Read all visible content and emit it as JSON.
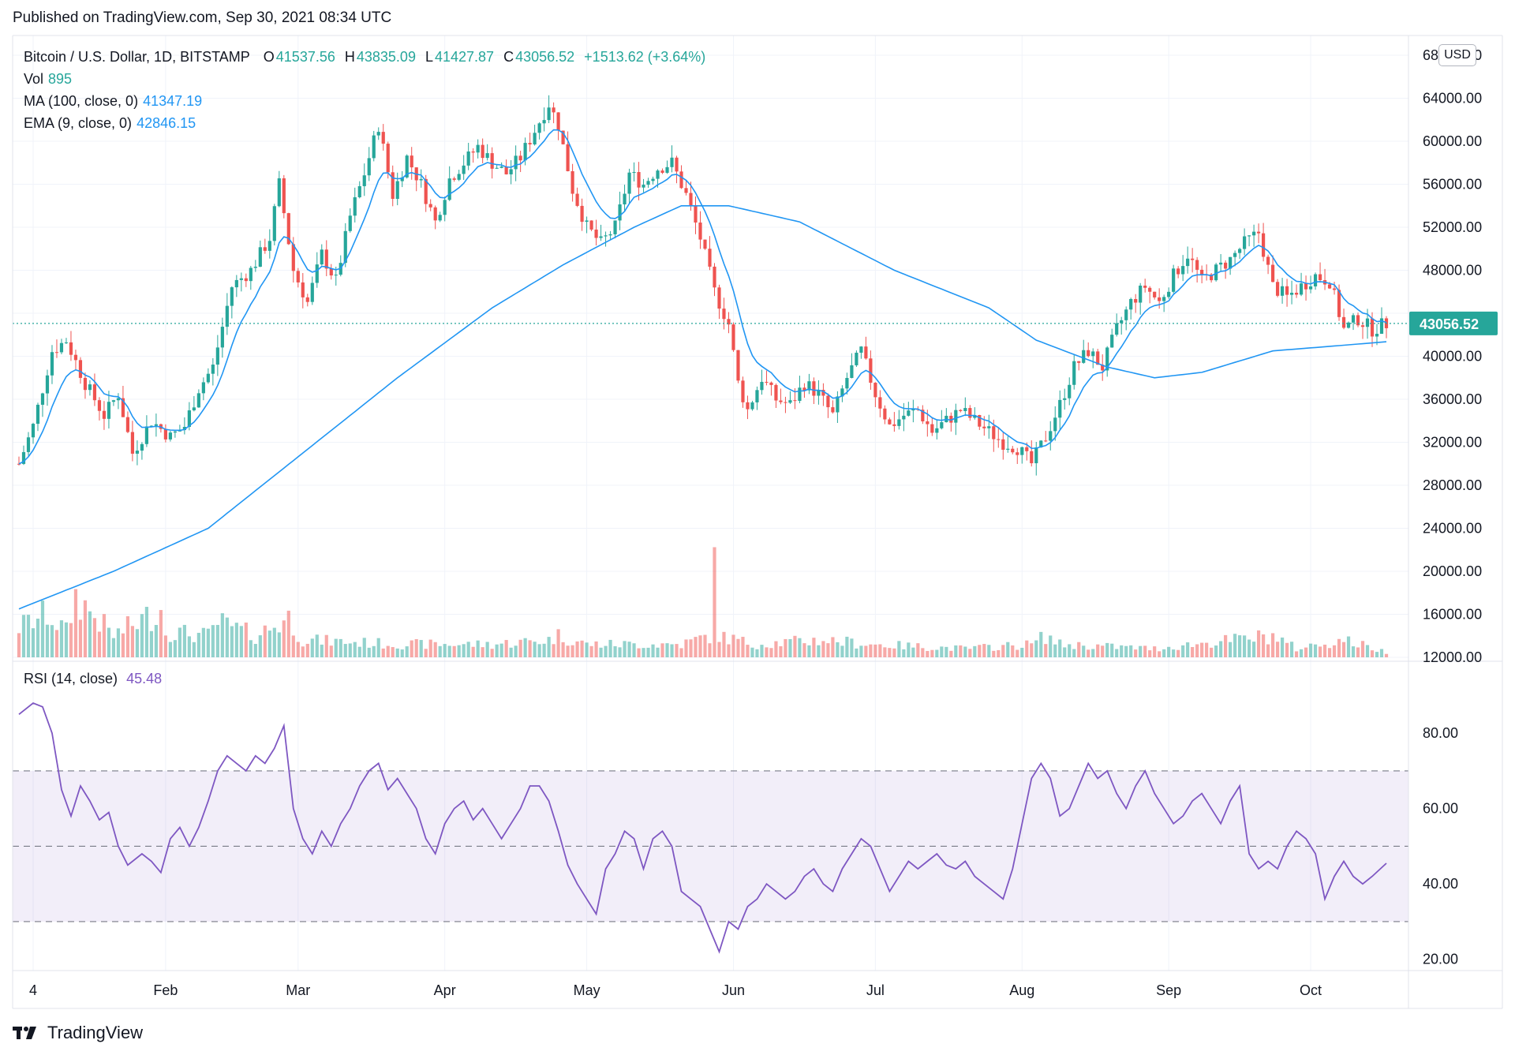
{
  "header": {
    "published": "Published on TradingView.com, Sep 30, 2021 08:34 UTC"
  },
  "legend": {
    "symbol": "Bitcoin / U.S. Dollar, 1D, BITSTAMP",
    "open_label": "O",
    "open": "41537.56",
    "high_label": "H",
    "high": "43835.09",
    "low_label": "L",
    "low": "41427.87",
    "close_label": "C",
    "close": "43056.52",
    "change": "+1513.62 (+3.64%)",
    "vol_label": "Vol",
    "vol": "895",
    "ma_label": "MA (100, close, 0)",
    "ma": "41347.19",
    "ema_label": "EMA (9, close, 0)",
    "ema": "42846.15",
    "rsi_label": "RSI (14, close)",
    "rsi": "45.48"
  },
  "currency": "USD",
  "footer": {
    "logo_text": "TradingView"
  },
  "colors": {
    "up": "#26a69a",
    "down": "#ef5350",
    "ma": "#2196f3",
    "rsi": "#7e57c2",
    "price_tag": "#26a69a"
  },
  "chart_data": [
    {
      "type": "candlestick",
      "title": "Bitcoin / U.S. Dollar, 1D, BITSTAMP",
      "ylabel": "USD",
      "ylim": [
        12000,
        68000
      ],
      "y_ticks": [
        "68000.00",
        "64000.00",
        "60000.00",
        "56000.00",
        "52000.00",
        "48000.00",
        "44000.00",
        "40000.00",
        "36000.00",
        "32000.00",
        "28000.00",
        "24000.00",
        "20000.00",
        "16000.00",
        "12000.00"
      ],
      "x_ticks": [
        "4",
        "Feb",
        "Mar",
        "Apr",
        "May",
        "Jun",
        "Jul",
        "Aug",
        "Sep",
        "Oct"
      ],
      "current_price": "43056.52",
      "close_path": [
        [
          0,
          30000
        ],
        [
          3,
          33500
        ],
        [
          7,
          40500
        ],
        [
          10,
          41500
        ],
        [
          14,
          37500
        ],
        [
          18,
          34500
        ],
        [
          21,
          36500
        ],
        [
          24,
          31000
        ],
        [
          28,
          34000
        ],
        [
          32,
          32500
        ],
        [
          35,
          33500
        ],
        [
          38,
          37000
        ],
        [
          41,
          39000
        ],
        [
          45,
          46500
        ],
        [
          49,
          48000
        ],
        [
          53,
          51000
        ],
        [
          55,
          56000
        ],
        [
          58,
          48000
        ],
        [
          61,
          45000
        ],
        [
          64,
          49500
        ],
        [
          67,
          47000
        ],
        [
          70,
          53000
        ],
        [
          73,
          57000
        ],
        [
          76,
          61500
        ],
        [
          79,
          55000
        ],
        [
          82,
          58500
        ],
        [
          85,
          56000
        ],
        [
          88,
          52500
        ],
        [
          91,
          56500
        ],
        [
          94,
          58000
        ],
        [
          97,
          59500
        ],
        [
          100,
          58000
        ],
        [
          103,
          57000
        ],
        [
          106,
          58500
        ],
        [
          109,
          61000
        ],
        [
          112,
          63500
        ],
        [
          114,
          61500
        ],
        [
          117,
          55500
        ],
        [
          120,
          52000
        ],
        [
          123,
          50500
        ],
        [
          126,
          52000
        ],
        [
          129,
          57000
        ],
        [
          132,
          56000
        ],
        [
          135,
          57500
        ],
        [
          138,
          58000
        ],
        [
          141,
          55000
        ],
        [
          144,
          51000
        ],
        [
          147,
          46000
        ],
        [
          150,
          43000
        ],
        [
          152,
          37500
        ],
        [
          154,
          35000
        ],
        [
          157,
          38000
        ],
        [
          160,
          36000
        ],
        [
          163,
          35500
        ],
        [
          166,
          37500
        ],
        [
          169,
          36500
        ],
        [
          172,
          34500
        ],
        [
          175,
          38000
        ],
        [
          178,
          40500
        ],
        [
          181,
          36500
        ],
        [
          184,
          33500
        ],
        [
          187,
          34500
        ],
        [
          190,
          35000
        ],
        [
          193,
          33000
        ],
        [
          196,
          34000
        ],
        [
          199,
          35000
        ],
        [
          202,
          34000
        ],
        [
          205,
          33000
        ],
        [
          208,
          32000
        ],
        [
          211,
          31500
        ],
        [
          214,
          30000
        ],
        [
          217,
          32500
        ],
        [
          220,
          35500
        ],
        [
          223,
          39000
        ],
        [
          226,
          40500
        ],
        [
          229,
          39000
        ],
        [
          232,
          42500
        ],
        [
          235,
          45000
        ],
        [
          238,
          46500
        ],
        [
          241,
          45000
        ],
        [
          244,
          47500
        ],
        [
          247,
          49500
        ],
        [
          250,
          47000
        ],
        [
          253,
          48000
        ],
        [
          256,
          49000
        ],
        [
          259,
          50500
        ],
        [
          262,
          51500
        ],
        [
          265,
          46500
        ],
        [
          268,
          45500
        ],
        [
          271,
          46500
        ],
        [
          274,
          47500
        ],
        [
          277,
          47000
        ],
        [
          280,
          42500
        ],
        [
          283,
          43500
        ],
        [
          286,
          42500
        ],
        [
          289,
          43056
        ]
      ],
      "ma100_path": [
        [
          0,
          16500
        ],
        [
          20,
          20000
        ],
        [
          40,
          24000
        ],
        [
          60,
          31000
        ],
        [
          80,
          38000
        ],
        [
          100,
          44500
        ],
        [
          115,
          48500
        ],
        [
          130,
          52000
        ],
        [
          140,
          54000
        ],
        [
          150,
          54000
        ],
        [
          165,
          52500
        ],
        [
          185,
          48000
        ],
        [
          205,
          44500
        ],
        [
          215,
          41500
        ],
        [
          230,
          39000
        ],
        [
          240,
          38000
        ],
        [
          250,
          38500
        ],
        [
          265,
          40500
        ],
        [
          289,
          41347
        ]
      ],
      "volume_ylim": [
        0,
        20000
      ],
      "volume_path": [
        [
          0,
          3500
        ],
        [
          6,
          5000
        ],
        [
          10,
          3000
        ],
        [
          12,
          7000
        ],
        [
          20,
          2500
        ],
        [
          30,
          5500
        ],
        [
          31,
          3000
        ],
        [
          40,
          2500
        ],
        [
          42,
          4000
        ],
        [
          50,
          2500
        ],
        [
          57,
          4500
        ],
        [
          60,
          2000
        ],
        [
          80,
          1500
        ],
        [
          100,
          1500
        ],
        [
          112,
          2000
        ],
        [
          114,
          2500
        ],
        [
          120,
          1500
        ],
        [
          140,
          1500
        ],
        [
          146,
          2500
        ],
        [
          147,
          9500
        ],
        [
          148,
          2500
        ],
        [
          155,
          1500
        ],
        [
          170,
          2000
        ],
        [
          180,
          1500
        ],
        [
          200,
          1000
        ],
        [
          214,
          1500
        ],
        [
          217,
          2500
        ],
        [
          220,
          1500
        ],
        [
          240,
          1000
        ],
        [
          265,
          2500
        ],
        [
          270,
          1000
        ],
        [
          280,
          2000
        ],
        [
          289,
          600
        ]
      ]
    },
    {
      "type": "line",
      "title": "RSI (14, close)",
      "ylim": [
        17,
        97
      ],
      "y_ticks": [
        "80.00",
        "60.00",
        "40.00",
        "20.00"
      ],
      "bands": [
        30,
        50,
        70
      ],
      "last": 45.48,
      "path": [
        [
          0,
          85
        ],
        [
          3,
          88
        ],
        [
          5,
          87
        ],
        [
          7,
          80
        ],
        [
          9,
          65
        ],
        [
          11,
          58
        ],
        [
          13,
          66
        ],
        [
          15,
          62
        ],
        [
          17,
          57
        ],
        [
          19,
          59
        ],
        [
          21,
          50
        ],
        [
          23,
          45
        ],
        [
          26,
          48
        ],
        [
          28,
          46
        ],
        [
          30,
          43
        ],
        [
          32,
          52
        ],
        [
          34,
          55
        ],
        [
          36,
          50
        ],
        [
          38,
          55
        ],
        [
          40,
          62
        ],
        [
          42,
          70
        ],
        [
          44,
          74
        ],
        [
          46,
          72
        ],
        [
          48,
          70
        ],
        [
          50,
          74
        ],
        [
          52,
          72
        ],
        [
          54,
          76
        ],
        [
          56,
          82
        ],
        [
          58,
          60
        ],
        [
          60,
          52
        ],
        [
          62,
          48
        ],
        [
          64,
          54
        ],
        [
          66,
          50
        ],
        [
          68,
          56
        ],
        [
          70,
          60
        ],
        [
          72,
          66
        ],
        [
          74,
          70
        ],
        [
          76,
          72
        ],
        [
          78,
          65
        ],
        [
          80,
          68
        ],
        [
          82,
          64
        ],
        [
          84,
          60
        ],
        [
          86,
          52
        ],
        [
          88,
          48
        ],
        [
          90,
          56
        ],
        [
          92,
          60
        ],
        [
          94,
          62
        ],
        [
          96,
          57
        ],
        [
          98,
          60
        ],
        [
          100,
          56
        ],
        [
          102,
          52
        ],
        [
          104,
          56
        ],
        [
          106,
          60
        ],
        [
          108,
          66
        ],
        [
          110,
          66
        ],
        [
          112,
          62
        ],
        [
          114,
          54
        ],
        [
          116,
          45
        ],
        [
          118,
          40
        ],
        [
          120,
          36
        ],
        [
          122,
          32
        ],
        [
          124,
          44
        ],
        [
          126,
          48
        ],
        [
          128,
          54
        ],
        [
          130,
          52
        ],
        [
          132,
          44
        ],
        [
          134,
          52
        ],
        [
          136,
          54
        ],
        [
          138,
          50
        ],
        [
          140,
          38
        ],
        [
          142,
          36
        ],
        [
          144,
          34
        ],
        [
          146,
          28
        ],
        [
          148,
          22
        ],
        [
          150,
          30
        ],
        [
          152,
          28
        ],
        [
          154,
          34
        ],
        [
          156,
          36
        ],
        [
          158,
          40
        ],
        [
          160,
          38
        ],
        [
          162,
          36
        ],
        [
          164,
          38
        ],
        [
          166,
          42
        ],
        [
          168,
          44
        ],
        [
          170,
          40
        ],
        [
          172,
          38
        ],
        [
          174,
          44
        ],
        [
          176,
          48
        ],
        [
          178,
          52
        ],
        [
          180,
          50
        ],
        [
          182,
          44
        ],
        [
          184,
          38
        ],
        [
          186,
          42
        ],
        [
          188,
          46
        ],
        [
          190,
          44
        ],
        [
          192,
          46
        ],
        [
          194,
          48
        ],
        [
          196,
          45
        ],
        [
          198,
          44
        ],
        [
          200,
          46
        ],
        [
          202,
          42
        ],
        [
          204,
          40
        ],
        [
          206,
          38
        ],
        [
          208,
          36
        ],
        [
          210,
          44
        ],
        [
          212,
          56
        ],
        [
          214,
          68
        ],
        [
          216,
          72
        ],
        [
          218,
          68
        ],
        [
          220,
          58
        ],
        [
          222,
          60
        ],
        [
          224,
          66
        ],
        [
          226,
          72
        ],
        [
          228,
          68
        ],
        [
          230,
          70
        ],
        [
          232,
          64
        ],
        [
          234,
          60
        ],
        [
          236,
          66
        ],
        [
          238,
          70
        ],
        [
          240,
          64
        ],
        [
          242,
          60
        ],
        [
          244,
          56
        ],
        [
          246,
          58
        ],
        [
          248,
          62
        ],
        [
          250,
          64
        ],
        [
          252,
          60
        ],
        [
          254,
          56
        ],
        [
          256,
          62
        ],
        [
          258,
          66
        ],
        [
          260,
          48
        ],
        [
          262,
          44
        ],
        [
          264,
          46
        ],
        [
          266,
          44
        ],
        [
          268,
          50
        ],
        [
          270,
          54
        ],
        [
          272,
          52
        ],
        [
          274,
          48
        ],
        [
          276,
          36
        ],
        [
          278,
          42
        ],
        [
          280,
          46
        ],
        [
          282,
          42
        ],
        [
          284,
          40
        ],
        [
          286,
          42
        ],
        [
          289,
          45.48
        ]
      ]
    }
  ]
}
